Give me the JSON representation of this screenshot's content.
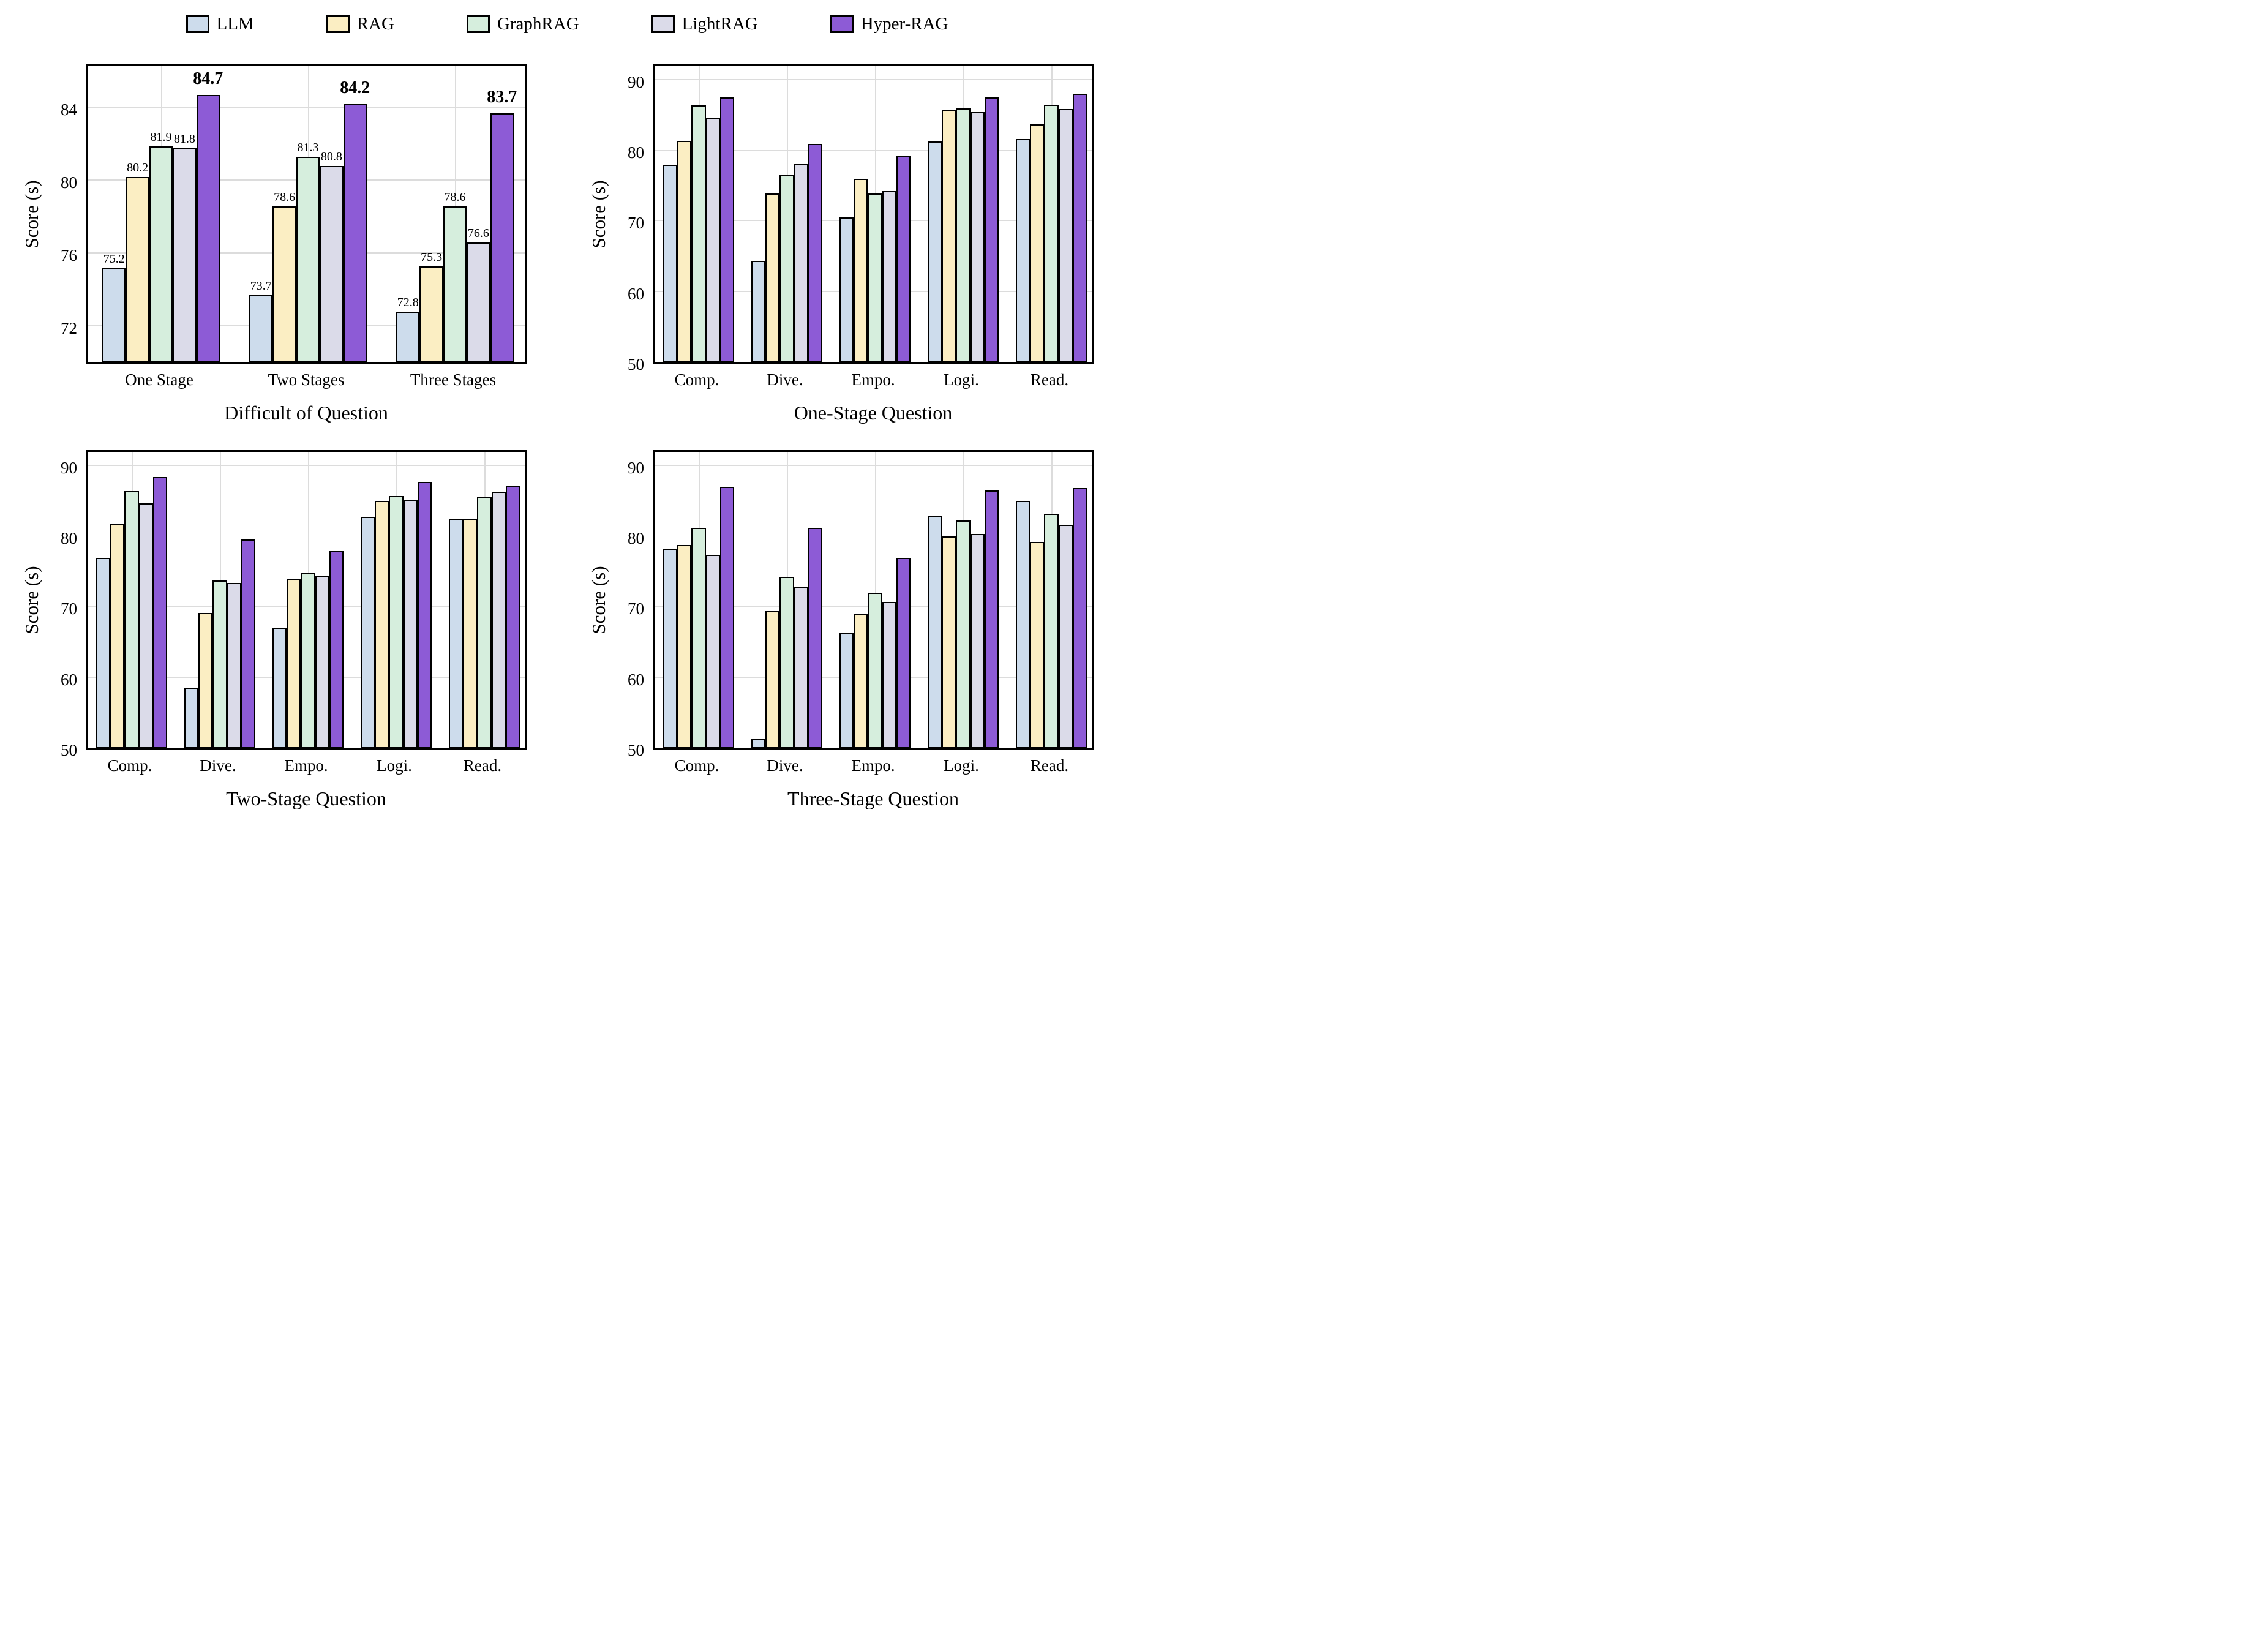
{
  "legend": {
    "items": [
      {
        "label": "LLM",
        "color": "#cddcec"
      },
      {
        "label": "RAG",
        "color": "#fbeec3"
      },
      {
        "label": "GraphRAG",
        "color": "#d6eedd"
      },
      {
        "label": "LightRAG",
        "color": "#dbdbe9"
      },
      {
        "label": "Hyper-RAG",
        "color": "#8d5bd6"
      }
    ]
  },
  "chart_data": {
    "type": "bar",
    "ylabel": "Score (s)",
    "grid": true,
    "legend_position": "top",
    "bar_edge_color": "#000000",
    "series_names": [
      "LLM",
      "RAG",
      "GraphRAG",
      "LightRAG",
      "Hyper-RAG"
    ],
    "series_colors": [
      "#cddcec",
      "#fbeec3",
      "#d6eedd",
      "#dbdbe9",
      "#8d5bd6"
    ],
    "charts": [
      {
        "xlabel": "Difficult of Question",
        "categories": [
          "One Stage",
          "Two Stages",
          "Three Stages"
        ],
        "ylim": [
          70,
          86.5
        ],
        "yticks": [
          72,
          76,
          80,
          84
        ],
        "value_labels": true,
        "series": [
          {
            "name": "LLM",
            "values": [
              75.2,
              73.7,
              72.8
            ]
          },
          {
            "name": "RAG",
            "values": [
              80.2,
              78.6,
              75.3
            ]
          },
          {
            "name": "GraphRAG",
            "values": [
              81.9,
              81.3,
              78.6
            ]
          },
          {
            "name": "LightRAG",
            "values": [
              81.8,
              80.8,
              76.6
            ]
          },
          {
            "name": "Hyper-RAG",
            "values": [
              84.7,
              84.2,
              83.7
            ]
          }
        ]
      },
      {
        "xlabel": "One-Stage Question",
        "categories": [
          "Comp.",
          "Dive.",
          "Empo.",
          "Logi.",
          "Read."
        ],
        "ylim": [
          50,
          92.5
        ],
        "yticks": [
          50,
          60,
          70,
          80,
          90
        ],
        "value_labels": false,
        "series": [
          {
            "name": "LLM",
            "values": [
              78.0,
              64.4,
              70.6,
              81.3,
              81.7
            ]
          },
          {
            "name": "RAG",
            "values": [
              81.4,
              73.9,
              76.0,
              85.7,
              83.7
            ]
          },
          {
            "name": "GraphRAG",
            "values": [
              86.4,
              76.5,
              73.9,
              86.0,
              86.5
            ]
          },
          {
            "name": "LightRAG",
            "values": [
              84.7,
              78.1,
              74.3,
              85.5,
              85.9
            ]
          },
          {
            "name": "Hyper-RAG",
            "values": [
              87.6,
              81.0,
              79.2,
              87.6,
              88.1
            ]
          }
        ]
      },
      {
        "xlabel": "Two-Stage Question",
        "categories": [
          "Comp.",
          "Dive.",
          "Empo.",
          "Logi.",
          "Read."
        ],
        "ylim": [
          50,
          92.5
        ],
        "yticks": [
          50,
          60,
          70,
          80,
          90
        ],
        "value_labels": false,
        "series": [
          {
            "name": "LLM",
            "values": [
              77.0,
              58.5,
              67.1,
              82.8,
              82.5
            ]
          },
          {
            "name": "RAG",
            "values": [
              81.8,
              69.2,
              74.0,
              85.0,
              82.5
            ]
          },
          {
            "name": "GraphRAG",
            "values": [
              86.4,
              73.8,
              74.8,
              85.7,
              85.6
            ]
          },
          {
            "name": "LightRAG",
            "values": [
              84.7,
              73.4,
              74.4,
              85.2,
              86.3
            ]
          },
          {
            "name": "Hyper-RAG",
            "values": [
              88.4,
              79.6,
              77.9,
              87.7,
              87.2
            ]
          }
        ]
      },
      {
        "xlabel": "Three-Stage Question",
        "categories": [
          "Comp.",
          "Dive.",
          "Empo.",
          "Logi.",
          "Read."
        ],
        "ylim": [
          50,
          92.5
        ],
        "yticks": [
          50,
          60,
          70,
          80,
          90
        ],
        "value_labels": false,
        "series": [
          {
            "name": "LLM",
            "values": [
              78.2,
              51.3,
              66.4,
              83.0,
              85.0
            ]
          },
          {
            "name": "RAG",
            "values": [
              78.8,
              69.4,
              69.0,
              80.0,
              79.2
            ]
          },
          {
            "name": "GraphRAG",
            "values": [
              81.2,
              74.3,
              72.0,
              82.3,
              83.2
            ]
          },
          {
            "name": "LightRAG",
            "values": [
              77.4,
              72.9,
              70.7,
              80.4,
              81.7
            ]
          },
          {
            "name": "Hyper-RAG",
            "values": [
              87.0,
              81.2,
              77.0,
              86.5,
              86.9
            ]
          }
        ]
      }
    ]
  }
}
